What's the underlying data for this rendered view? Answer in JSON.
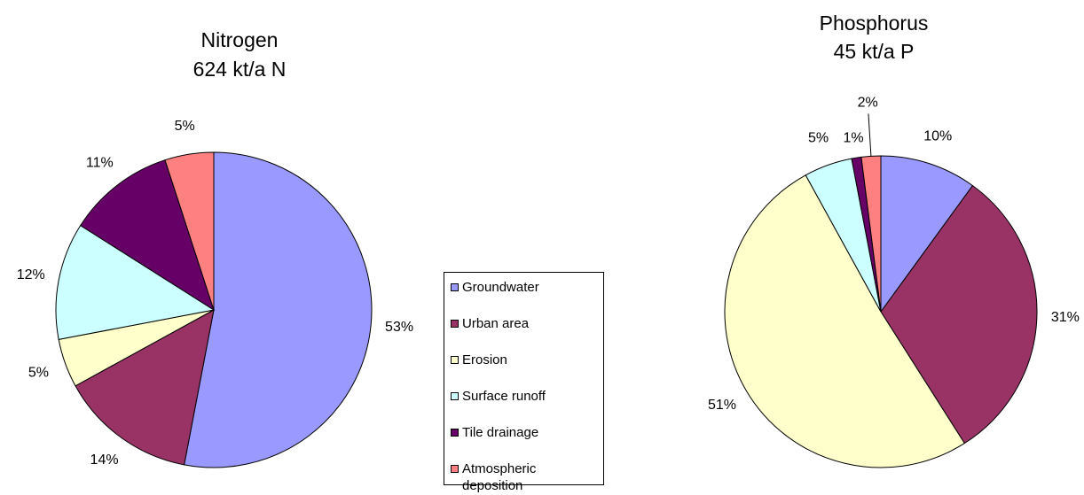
{
  "legend": {
    "categories": [
      "Groundwater",
      "Urban area",
      "Erosion",
      "Surface runoff",
      "Tile drainage",
      "Atmospheric deposition"
    ],
    "colors": [
      "#9999ff",
      "#993366",
      "#ffffcc",
      "#ccffff",
      "#660066",
      "#ff8080"
    ]
  },
  "chart_data": [
    {
      "type": "pie",
      "title": "Nitrogen",
      "subtitle": "624 kt/a N",
      "values": [
        53,
        14,
        5,
        12,
        11,
        5
      ],
      "value_labels": [
        "53%",
        "14%",
        "5%",
        "12%",
        "11%",
        "5%"
      ]
    },
    {
      "type": "pie",
      "title": "Phosphorus",
      "subtitle": "45 kt/a P",
      "values": [
        10,
        31,
        51,
        5,
        1,
        2
      ],
      "value_labels": [
        "10%",
        "31%",
        "51%",
        "5%",
        "1%",
        "2%"
      ]
    }
  ]
}
